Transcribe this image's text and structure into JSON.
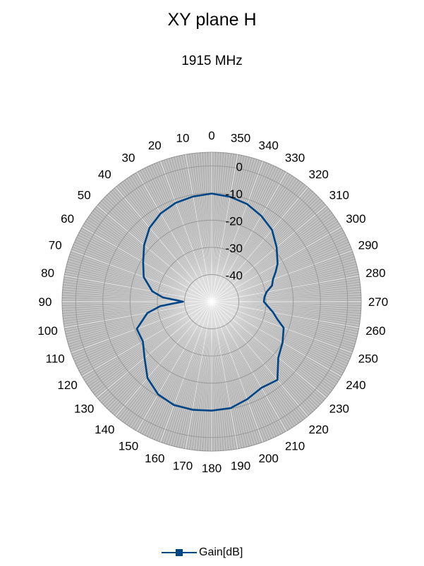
{
  "chart_data": {
    "type": "polar",
    "title": "XY plane H",
    "subtitle": "1915 MHz",
    "angle_direction": "counterclockwise",
    "angle_zero": "top",
    "angle_ticks": [
      "0",
      "10",
      "20",
      "30",
      "40",
      "50",
      "60",
      "70",
      "80",
      "90",
      "100",
      "110",
      "120",
      "130",
      "140",
      "150",
      "160",
      "170",
      "180",
      "190",
      "200",
      "210",
      "220",
      "230",
      "240",
      "250",
      "260",
      "270",
      "280",
      "290",
      "300",
      "310",
      "320",
      "330",
      "340",
      "350"
    ],
    "radial_ticks": [
      "0",
      "-10",
      "-20",
      "-30",
      "-40"
    ],
    "rlim": [
      -50,
      5
    ],
    "grid": true,
    "legend_position": "bottom",
    "colors": {
      "series": "#004586",
      "plot_area": "#b3b3b3",
      "grid": "#ffffff"
    },
    "series": [
      {
        "name": "Gain[dB]",
        "angles": [
          0,
          10,
          20,
          30,
          40,
          50,
          60,
          70,
          80,
          85,
          88,
          90,
          92,
          95,
          100,
          110,
          120,
          130,
          140,
          150,
          160,
          170,
          180,
          190,
          200,
          210,
          220,
          230,
          240,
          250,
          255,
          260,
          270,
          275,
          280,
          285,
          290,
          295,
          300,
          310,
          320,
          330,
          340,
          350
        ],
        "values": [
          -10.2,
          -10.7,
          -11.3,
          -12.5,
          -14.5,
          -17.6,
          -20.9,
          -23.4,
          -27.8,
          -32,
          -37.5,
          -39.5,
          -37,
          -31,
          -26,
          -20.7,
          -20.8,
          -17.8,
          -13.3,
          -10.6,
          -9.5,
          -9.6,
          -9.9,
          -10.2,
          -11.8,
          -13.4,
          -12.4,
          -18,
          -19.9,
          -21.8,
          -25,
          -27,
          -30.8,
          -30.5,
          -29.5,
          -27,
          -26,
          -24,
          -22,
          -18.8,
          -15.5,
          -13.5,
          -11.8,
          -10.8
        ]
      }
    ]
  }
}
